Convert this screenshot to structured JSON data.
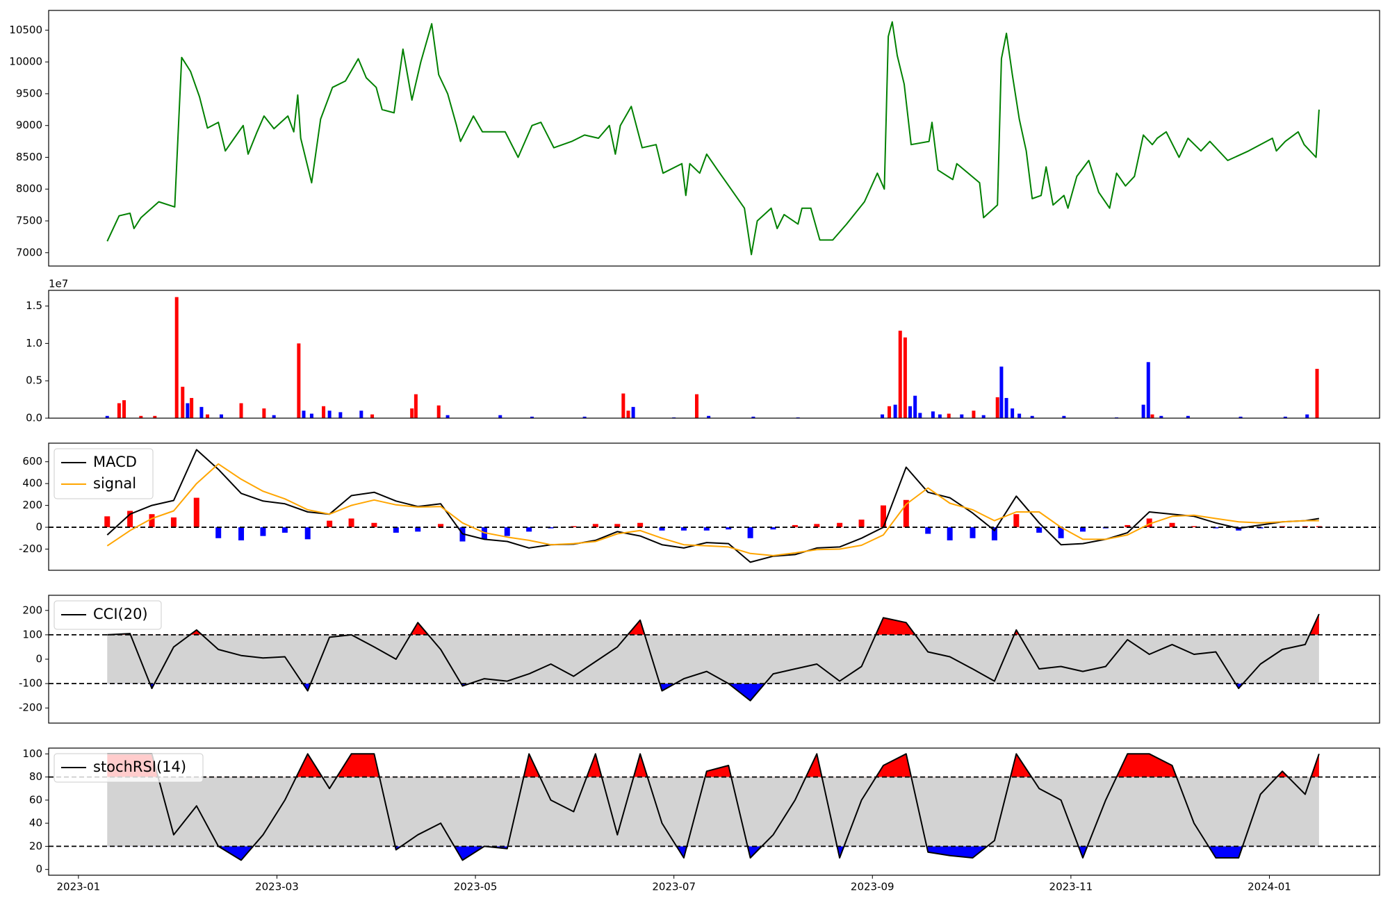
{
  "chart_data": [
    {
      "type": "line",
      "color": "#008000",
      "xlim": [
        -0.3,
        13.11
      ],
      "ylim": [
        6790,
        10810
      ],
      "yticks": [
        7000,
        7500,
        8000,
        8500,
        9000,
        9500,
        10000,
        10500
      ],
      "x": [
        0.29,
        0.41,
        0.52,
        0.56,
        0.63,
        0.81,
        0.97,
        1.04,
        1.13,
        1.22,
        1.3,
        1.41,
        1.48,
        1.57,
        1.66,
        1.71,
        1.8,
        1.87,
        1.97,
        2.11,
        2.17,
        2.21,
        2.24,
        2.35,
        2.44,
        2.56,
        2.69,
        2.82,
        2.9,
        3.0,
        3.06,
        3.18,
        3.27,
        3.36,
        3.45,
        3.56,
        3.63,
        3.72,
        3.81,
        3.85,
        3.98,
        4.07,
        4.3,
        4.43,
        4.57,
        4.66,
        4.79,
        4.97,
        5.1,
        5.24,
        5.35,
        5.41,
        5.46,
        5.57,
        5.68,
        5.82,
        5.89,
        6.08,
        6.12,
        6.16,
        6.26,
        6.33,
        6.44,
        6.53,
        6.71,
        6.78,
        6.84,
        6.98,
        7.04,
        7.11,
        7.25,
        7.29,
        7.38,
        7.47,
        7.6,
        7.74,
        7.92,
        8.05,
        8.12,
        8.16,
        8.2,
        8.25,
        8.32,
        8.39,
        8.57,
        8.6,
        8.66,
        8.81,
        8.85,
        9.08,
        9.12,
        9.26,
        9.3,
        9.35,
        9.41,
        9.48,
        9.55,
        9.61,
        9.7,
        9.75,
        9.82,
        9.93,
        9.97,
        10.06,
        10.18,
        10.28,
        10.39,
        10.46,
        10.55,
        10.64,
        10.73,
        10.82,
        10.87,
        10.96,
        11.09,
        11.18,
        11.31,
        11.4,
        11.58,
        11.79,
        12.03,
        12.07,
        12.16,
        12.29,
        12.35,
        12.47,
        12.5
      ],
      "values": [
        7180,
        7580,
        7620,
        7380,
        7550,
        7800,
        7720,
        10070,
        9850,
        9450,
        8960,
        9050,
        8600,
        8800,
        9000,
        8550,
        8900,
        9150,
        8950,
        9150,
        8900,
        9480,
        8800,
        8100,
        9100,
        9600,
        9700,
        10050,
        9750,
        9600,
        9250,
        9200,
        10200,
        9400,
        10000,
        10600,
        9800,
        9500,
        9000,
        8750,
        9150,
        8900,
        8900,
        8500,
        9000,
        9050,
        8650,
        8750,
        8850,
        8800,
        9000,
        8550,
        9000,
        9300,
        8650,
        8700,
        8250,
        8400,
        7900,
        8400,
        8250,
        8550,
        8300,
        8100,
        7700,
        6970,
        7500,
        7700,
        7380,
        7600,
        7450,
        7700,
        7700,
        7200,
        7200,
        7450,
        7800,
        8250,
        8000,
        10400,
        10630,
        10100,
        9650,
        8700,
        8750,
        9050,
        8300,
        8150,
        8400,
        8100,
        7550,
        7750,
        10050,
        10450,
        9800,
        9100,
        8600,
        7850,
        7900,
        8350,
        7750,
        7900,
        7700,
        8200,
        8450,
        7950,
        7700,
        8250,
        8050,
        8200,
        8850,
        8700,
        8800,
        8900,
        8500,
        8800,
        8600,
        8750,
        8450,
        8600,
        8800,
        8600,
        8750,
        8900,
        8700,
        8500,
        9250
      ]
    },
    {
      "type": "bar",
      "offset_text": "1e7",
      "xlim": [
        -0.3,
        13.11
      ],
      "ylim": [
        0,
        17100000
      ],
      "yticks": [
        {
          "value": 0,
          "label": "0.0"
        },
        {
          "value": 5000000,
          "label": "0.5"
        },
        {
          "value": 10000000,
          "label": "1.0"
        },
        {
          "value": 15000000,
          "label": "1.5"
        }
      ],
      "x": [
        0.29,
        0.41,
        0.46,
        0.63,
        0.77,
        0.99,
        1.05,
        1.1,
        1.14,
        1.24,
        1.3,
        1.44,
        1.64,
        1.87,
        1.97,
        2.22,
        2.27,
        2.35,
        2.47,
        2.53,
        2.64,
        2.85,
        2.96,
        3.36,
        3.4,
        3.63,
        3.72,
        4.25,
        4.57,
        5.1,
        5.49,
        5.54,
        5.59,
        6.0,
        6.23,
        6.35,
        6.8,
        7.25,
        8.1,
        8.17,
        8.23,
        8.28,
        8.33,
        8.38,
        8.43,
        8.48,
        8.61,
        8.68,
        8.77,
        8.9,
        9.02,
        9.12,
        9.26,
        9.3,
        9.35,
        9.41,
        9.48,
        9.61,
        9.93,
        10.46,
        10.73,
        10.78,
        10.82,
        10.91,
        11.18,
        11.71,
        12.16,
        12.38,
        12.48
      ],
      "values": [
        300000,
        2000000,
        2400000,
        300000,
        300000,
        16200000,
        4200000,
        2000000,
        2700000,
        1500000,
        500000,
        500000,
        2000000,
        1300000,
        400000,
        10000000,
        1000000,
        600000,
        1600000,
        1000000,
        800000,
        1000000,
        500000,
        1300000,
        3200000,
        1700000,
        400000,
        400000,
        200000,
        200000,
        3300000,
        1000000,
        1500000,
        100000,
        3200000,
        300000,
        200000,
        100000,
        500000,
        1600000,
        1800000,
        11700000,
        10800000,
        1600000,
        3000000,
        700000,
        900000,
        500000,
        600000,
        500000,
        1000000,
        400000,
        2800000,
        6900000,
        2700000,
        1300000,
        600000,
        300000,
        300000,
        100000,
        1800000,
        7500000,
        500000,
        300000,
        300000,
        200000,
        200000,
        500000,
        6600000
      ],
      "colors": [
        "blue",
        "red",
        "red",
        "red",
        "red",
        "red",
        "red",
        "blue",
        "red",
        "blue",
        "red",
        "blue",
        "red",
        "red",
        "blue",
        "red",
        "blue",
        "blue",
        "red",
        "blue",
        "blue",
        "blue",
        "red",
        "red",
        "red",
        "red",
        "blue",
        "blue",
        "blue",
        "blue",
        "red",
        "red",
        "blue",
        "blue",
        "red",
        "blue",
        "blue",
        "blue",
        "blue",
        "red",
        "blue",
        "red",
        "red",
        "blue",
        "blue",
        "blue",
        "blue",
        "blue",
        "red",
        "blue",
        "red",
        "blue",
        "red",
        "blue",
        "blue",
        "blue",
        "blue",
        "blue",
        "blue",
        "blue",
        "blue",
        "blue",
        "red",
        "blue",
        "blue",
        "blue",
        "blue",
        "blue",
        "red"
      ]
    },
    {
      "type": "line",
      "xlim": [
        -0.3,
        13.11
      ],
      "ylim": [
        -394,
        770
      ],
      "yticks": [
        -200,
        0,
        200,
        400,
        600
      ],
      "hline": 0,
      "legend": "upper left",
      "x": [
        0.29,
        0.52,
        0.74,
        0.96,
        1.19,
        1.41,
        1.64,
        1.86,
        2.08,
        2.31,
        2.53,
        2.75,
        2.98,
        3.2,
        3.42,
        3.65,
        3.87,
        4.09,
        4.32,
        4.54,
        4.76,
        4.99,
        5.21,
        5.43,
        5.66,
        5.88,
        6.1,
        6.33,
        6.55,
        6.77,
        7.0,
        7.22,
        7.44,
        7.67,
        7.89,
        8.11,
        8.34,
        8.56,
        8.78,
        9.01,
        9.23,
        9.45,
        9.68,
        9.9,
        10.12,
        10.35,
        10.57,
        10.79,
        11.02,
        11.24,
        11.46,
        11.69,
        11.91,
        12.13,
        12.36,
        12.5
      ],
      "series": [
        {
          "name": "MACD",
          "color": "#000000",
          "values": [
            -70,
            120,
            200,
            245,
            710,
            530,
            310,
            240,
            215,
            140,
            120,
            290,
            320,
            240,
            190,
            215,
            -60,
            -110,
            -130,
            -190,
            -160,
            -155,
            -120,
            -40,
            -80,
            -160,
            -190,
            -140,
            -150,
            -320,
            -265,
            -250,
            -190,
            -180,
            -100,
            0,
            550,
            320,
            270,
            130,
            -30,
            285,
            40,
            -160,
            -150,
            -110,
            -50,
            140,
            120,
            100,
            40,
            -10,
            20,
            50,
            60,
            80
          ]
        },
        {
          "name": "signal",
          "color": "#ffa500",
          "values": [
            -170,
            -30,
            80,
            150,
            400,
            580,
            440,
            330,
            260,
            160,
            120,
            200,
            250,
            205,
            185,
            190,
            40,
            -50,
            -90,
            -120,
            -160,
            -150,
            -130,
            -60,
            -30,
            -100,
            -160,
            -170,
            -180,
            -240,
            -260,
            -235,
            -205,
            -200,
            -165,
            -70,
            210,
            360,
            220,
            160,
            60,
            140,
            140,
            0,
            -110,
            -110,
            -70,
            30,
            100,
            110,
            80,
            50,
            40,
            50,
            60,
            60
          ]
        }
      ],
      "bar_values": [
        100,
        150,
        120,
        90,
        270,
        -100,
        -120,
        -80,
        -50,
        -110,
        60,
        80,
        40,
        -50,
        -40,
        30,
        -130,
        -110,
        -80,
        -40,
        -10,
        10,
        30,
        30,
        40,
        -30,
        -30,
        -30,
        -20,
        -100,
        -20,
        20,
        30,
        40,
        70,
        200,
        250,
        -60,
        -120,
        -100,
        -120,
        120,
        -50,
        -100,
        -40,
        -10,
        20,
        80,
        40,
        10,
        -10,
        -30,
        -10,
        10,
        10,
        10
      ],
      "bar_colors": [
        "red",
        "blue"
      ]
    },
    {
      "type": "line",
      "xlim": [
        -0.3,
        13.11
      ],
      "ylim": [
        -262,
        262
      ],
      "yticks": [
        -200,
        -100,
        0,
        100,
        200
      ],
      "legend": "upper left",
      "band": [
        -100,
        100
      ],
      "band_color": "#d3d3d3",
      "fill_colors": [
        "red",
        "blue"
      ],
      "x": [
        0.29,
        0.52,
        0.74,
        0.96,
        1.19,
        1.41,
        1.64,
        1.86,
        2.08,
        2.31,
        2.53,
        2.75,
        2.98,
        3.2,
        3.42,
        3.65,
        3.87,
        4.09,
        4.32,
        4.54,
        4.76,
        4.99,
        5.21,
        5.43,
        5.66,
        5.88,
        6.1,
        6.33,
        6.55,
        6.77,
        7.0,
        7.22,
        7.44,
        7.67,
        7.89,
        8.11,
        8.34,
        8.56,
        8.78,
        9.01,
        9.23,
        9.45,
        9.68,
        9.9,
        10.12,
        10.35,
        10.57,
        10.79,
        11.02,
        11.24,
        11.46,
        11.69,
        11.91,
        12.13,
        12.36,
        12.5
      ],
      "series": [
        {
          "name": "CCI(20)",
          "color": "#000000",
          "values": [
            100,
            105,
            -120,
            50,
            120,
            40,
            15,
            5,
            10,
            -130,
            90,
            100,
            50,
            0,
            150,
            40,
            -110,
            -80,
            -90,
            -60,
            -20,
            -70,
            -10,
            50,
            160,
            -130,
            -80,
            -50,
            -100,
            -170,
            -60,
            -40,
            -20,
            -90,
            -30,
            170,
            150,
            30,
            10,
            -40,
            -90,
            120,
            -40,
            -30,
            -50,
            -30,
            80,
            20,
            60,
            20,
            30,
            -120,
            -20,
            40,
            60,
            185
          ]
        }
      ]
    },
    {
      "type": "line",
      "xlim": [
        -0.3,
        13.11
      ],
      "ylim": [
        -5,
        105
      ],
      "yticks": [
        0,
        20,
        40,
        60,
        80,
        100
      ],
      "legend": "upper left",
      "band": [
        20,
        80
      ],
      "band_color": "#d3d3d3",
      "fill_colors": [
        "red",
        "blue"
      ],
      "xticks": [
        {
          "value": 0,
          "label": "2023-01"
        },
        {
          "value": 2,
          "label": "2023-03"
        },
        {
          "value": 4,
          "label": "2023-05"
        },
        {
          "value": 6,
          "label": "2023-07"
        },
        {
          "value": 8,
          "label": "2023-09"
        },
        {
          "value": 10,
          "label": "2023-11"
        },
        {
          "value": 12,
          "label": "2024-01"
        }
      ],
      "x": [
        0.29,
        0.52,
        0.74,
        0.96,
        1.19,
        1.41,
        1.64,
        1.86,
        2.08,
        2.31,
        2.53,
        2.75,
        2.98,
        3.2,
        3.42,
        3.65,
        3.87,
        4.09,
        4.32,
        4.54,
        4.76,
        4.99,
        5.21,
        5.43,
        5.66,
        5.88,
        6.1,
        6.33,
        6.55,
        6.77,
        7.0,
        7.22,
        7.44,
        7.67,
        7.89,
        8.11,
        8.34,
        8.56,
        8.78,
        9.01,
        9.23,
        9.45,
        9.68,
        9.9,
        10.12,
        10.35,
        10.57,
        10.79,
        11.02,
        11.24,
        11.46,
        11.69,
        11.91,
        12.13,
        12.36,
        12.5
      ],
      "series": [
        {
          "name": "stochRSI(14)",
          "color": "#000000",
          "values": [
            100,
            100,
            100,
            30,
            55,
            20,
            8,
            30,
            60,
            100,
            70,
            100,
            100,
            17,
            30,
            40,
            8,
            20,
            18,
            100,
            60,
            50,
            100,
            30,
            100,
            40,
            10,
            85,
            90,
            10,
            30,
            60,
            100,
            10,
            60,
            90,
            100,
            15,
            12,
            10,
            25,
            100,
            70,
            60,
            10,
            60,
            100,
            100,
            90,
            40,
            10,
            10,
            65,
            85,
            65,
            100
          ]
        }
      ]
    }
  ]
}
